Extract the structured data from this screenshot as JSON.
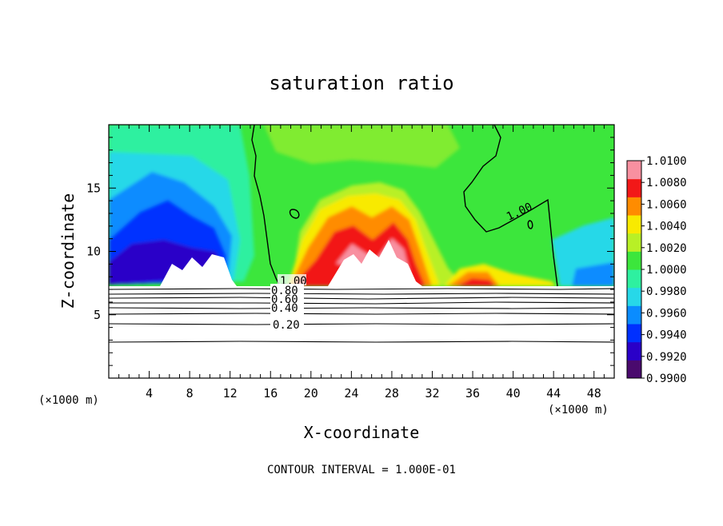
{
  "chart_data": {
    "type": "heatmap",
    "title": "saturation ratio",
    "xlabel": "X-coordinate",
    "ylabel": "Z-coordinate",
    "x_unit": "(×1000 m)",
    "x_unit_right": "(×1000 m)",
    "footer": "CONTOUR INTERVAL = 1.000E-01",
    "xlim": [
      0,
      50
    ],
    "ylim": [
      0,
      20
    ],
    "x_ticks": [
      4,
      8,
      12,
      16,
      20,
      24,
      28,
      32,
      36,
      40,
      44,
      48
    ],
    "y_ticks": [
      5,
      10,
      15
    ],
    "colorbar": {
      "levels": [
        "0.9900",
        "0.9920",
        "0.9940",
        "0.9960",
        "0.9980",
        "1.0000",
        "1.0020",
        "1.0040",
        "1.0060",
        "1.0080",
        "1.0100"
      ],
      "colors": [
        "#4a0a6e",
        "#2a00c8",
        "#0030ff",
        "#0a8cff",
        "#27d8e8",
        "#2ef0a0",
        "#3ce63c",
        "#b8f026",
        "#f8ea00",
        "#ff8c00",
        "#f21818",
        "#f890a0"
      ]
    },
    "contour_labels": [
      "1.00",
      "1.00",
      "0.80",
      "0.60",
      "0.40",
      "0.20"
    ],
    "surface_height": 7.3
  }
}
